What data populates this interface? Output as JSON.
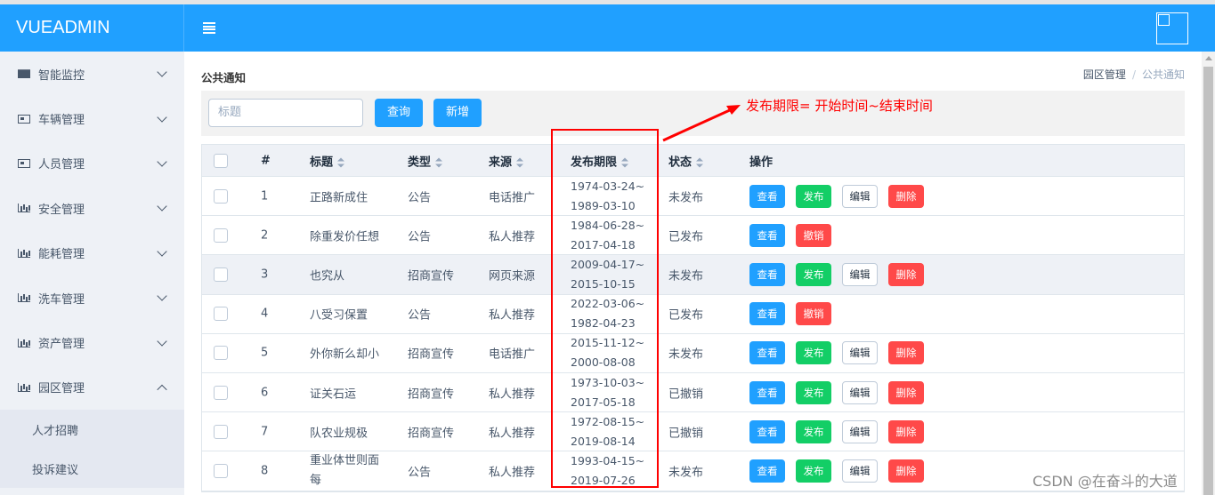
{
  "app": {
    "title": "VUEADMIN"
  },
  "sidebar": {
    "items": [
      {
        "label": "智能监控",
        "icon": "mail-icon"
      },
      {
        "label": "车辆管理",
        "icon": "id-card-icon"
      },
      {
        "label": "人员管理",
        "icon": "id-card-icon"
      },
      {
        "label": "安全管理",
        "icon": "bar-chart-icon"
      },
      {
        "label": "能耗管理",
        "icon": "bar-chart-icon"
      },
      {
        "label": "洗车管理",
        "icon": "bar-chart-icon"
      },
      {
        "label": "资产管理",
        "icon": "bar-chart-icon"
      },
      {
        "label": "园区管理",
        "icon": "bar-chart-icon",
        "expanded": true
      }
    ],
    "subitems": [
      {
        "label": "人才招聘"
      },
      {
        "label": "投诉建议"
      }
    ]
  },
  "page": {
    "title": "公共通知",
    "breadcrumb": [
      "园区管理",
      "公共通知"
    ],
    "breadcrumb_sep": "/"
  },
  "toolbar": {
    "search_placeholder": "标题",
    "query_label": "查询",
    "add_label": "新增"
  },
  "table": {
    "columns": [
      "#",
      "标题",
      "类型",
      "来源",
      "发布期限",
      "状态",
      "操作"
    ],
    "rows": [
      {
        "id": "1",
        "title": "正路新成住",
        "type": "公告",
        "source": "电话推广",
        "start": "1974-03-24~",
        "end": "1989-03-10",
        "status": "未发布",
        "actions": [
          "查看",
          "发布",
          "编辑",
          "删除"
        ]
      },
      {
        "id": "2",
        "title": "除重发价任想",
        "type": "公告",
        "source": "私人推荐",
        "start": "1984-06-28~",
        "end": "2017-04-18",
        "status": "已发布",
        "actions": [
          "查看",
          "撤销"
        ]
      },
      {
        "id": "3",
        "title": "也究从",
        "type": "招商宣传",
        "source": "网页来源",
        "start": "2009-04-17~",
        "end": "2015-10-15",
        "status": "未发布",
        "actions": [
          "查看",
          "发布",
          "编辑",
          "删除"
        ]
      },
      {
        "id": "4",
        "title": "八受习保置",
        "type": "公告",
        "source": "私人推荐",
        "start": "2022-03-06~",
        "end": "1982-04-23",
        "status": "已发布",
        "actions": [
          "查看",
          "撤销"
        ]
      },
      {
        "id": "5",
        "title": "外你新么却小",
        "type": "招商宣传",
        "source": "电话推广",
        "start": "2015-11-12~",
        "end": "2000-08-08",
        "status": "未发布",
        "actions": [
          "查看",
          "发布",
          "编辑",
          "删除"
        ]
      },
      {
        "id": "6",
        "title": "证关石运",
        "type": "招商宣传",
        "source": "私人推荐",
        "start": "1973-10-03~",
        "end": "2017-05-18",
        "status": "已撤销",
        "actions": [
          "查看",
          "发布",
          "编辑",
          "删除"
        ]
      },
      {
        "id": "7",
        "title": "队农业规极",
        "type": "招商宣传",
        "source": "私人推荐",
        "start": "1972-08-15~",
        "end": "2019-08-14",
        "status": "已撤销",
        "actions": [
          "查看",
          "发布",
          "编辑",
          "删除"
        ]
      },
      {
        "id": "8",
        "title": "重业体世则面每",
        "type": "公告",
        "source": "私人推荐",
        "start": "1993-04-15~",
        "end": "2019-07-26",
        "status": "未发布",
        "actions": [
          "查看",
          "发布",
          "编辑",
          "删除"
        ]
      }
    ]
  },
  "annotation": {
    "text": "发布期限= 开始时间~结束时间",
    "color": "#ff0000"
  },
  "watermark": "CSDN @在奋斗的大道",
  "colors": {
    "primary": "#20a0ff",
    "success": "#13ce66",
    "danger": "#ff4949"
  }
}
